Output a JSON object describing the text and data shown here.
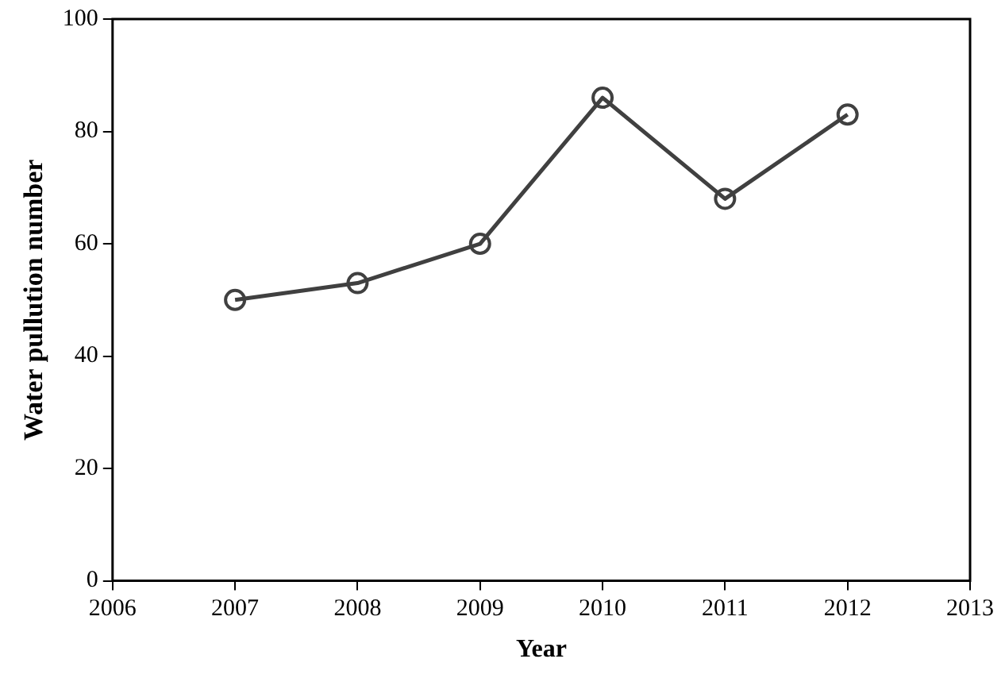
{
  "chart_data": {
    "type": "line",
    "xlabel": "Year",
    "ylabel": "Water pullution number",
    "x": [
      2007,
      2008,
      2009,
      2010,
      2011,
      2012
    ],
    "series": [
      {
        "color": "#404040",
        "values": [
          50,
          53,
          60,
          86,
          68,
          83
        ]
      }
    ],
    "xlim": [
      2006,
      2013
    ],
    "xticks": [
      2006,
      2007,
      2008,
      2009,
      2010,
      2011,
      2012,
      2013
    ],
    "ylim": [
      0,
      100
    ],
    "yticks": [
      0,
      20,
      40,
      60,
      80,
      100
    ],
    "grid": false,
    "legend": false,
    "marker": "circle",
    "line_style": "solid"
  }
}
